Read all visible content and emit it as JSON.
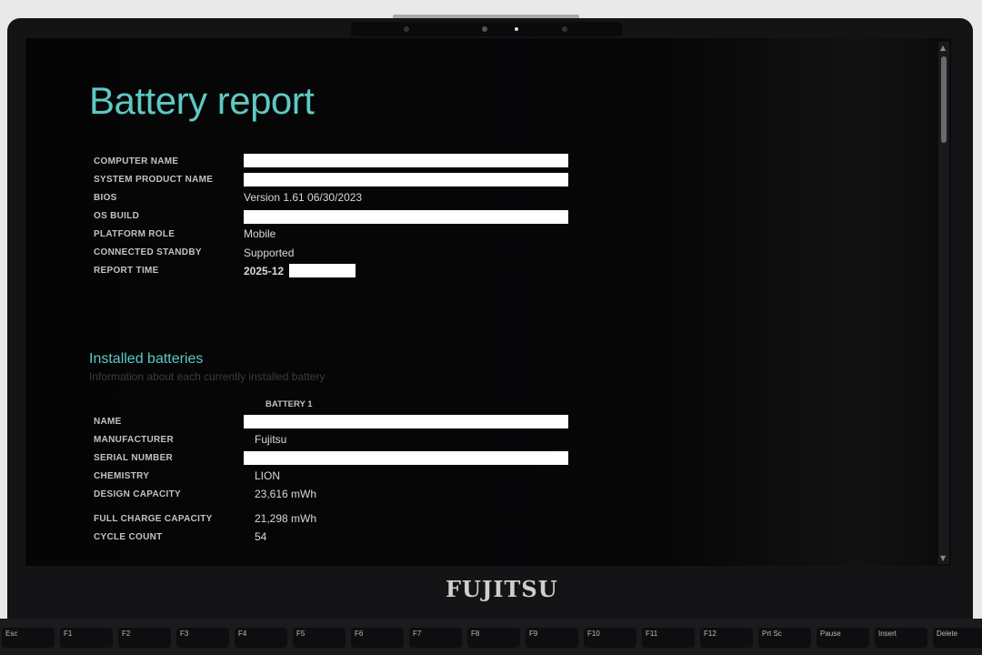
{
  "report": {
    "title": "Battery report",
    "system": [
      {
        "label": "COMPUTER NAME",
        "value": null,
        "redacted": true
      },
      {
        "label": "SYSTEM PRODUCT NAME",
        "value": null,
        "redacted": true
      },
      {
        "label": "BIOS",
        "value": "Version 1.61 06/30/2023"
      },
      {
        "label": "OS BUILD",
        "value": null,
        "redacted": true
      },
      {
        "label": "PLATFORM ROLE",
        "value": "Mobile"
      },
      {
        "label": "CONNECTED STANDBY",
        "value": "Supported"
      },
      {
        "label": "REPORT TIME",
        "value": "2025-12",
        "partially_redacted": true
      }
    ],
    "installed_batteries": {
      "heading": "Installed batteries",
      "subtitle": "Information about each currently installed battery",
      "column": "BATTERY 1",
      "rows": [
        {
          "label": "NAME",
          "value": null,
          "redacted": true
        },
        {
          "label": "MANUFACTURER",
          "value": "Fujitsu"
        },
        {
          "label": "SERIAL NUMBER",
          "value": null,
          "redacted": true
        },
        {
          "label": "CHEMISTRY",
          "value": "LION"
        },
        {
          "label": "DESIGN CAPACITY",
          "value": "23,616 mWh"
        },
        {
          "label": "FULL CHARGE CAPACITY",
          "value": "21,298 mWh"
        },
        {
          "label": "CYCLE COUNT",
          "value": "54"
        }
      ]
    }
  },
  "device": {
    "brand": "FUJITSU"
  },
  "keyboard": {
    "keys": [
      "Esc",
      "F1",
      "F2",
      "F3",
      "F4",
      "F5",
      "F6",
      "F7",
      "F8",
      "F9",
      "F10",
      "F11",
      "F12",
      "Prt Sc",
      "Pause",
      "Insert",
      "Delete"
    ]
  },
  "colors": {
    "accent": "#5ec9c2",
    "background": "#060607"
  }
}
